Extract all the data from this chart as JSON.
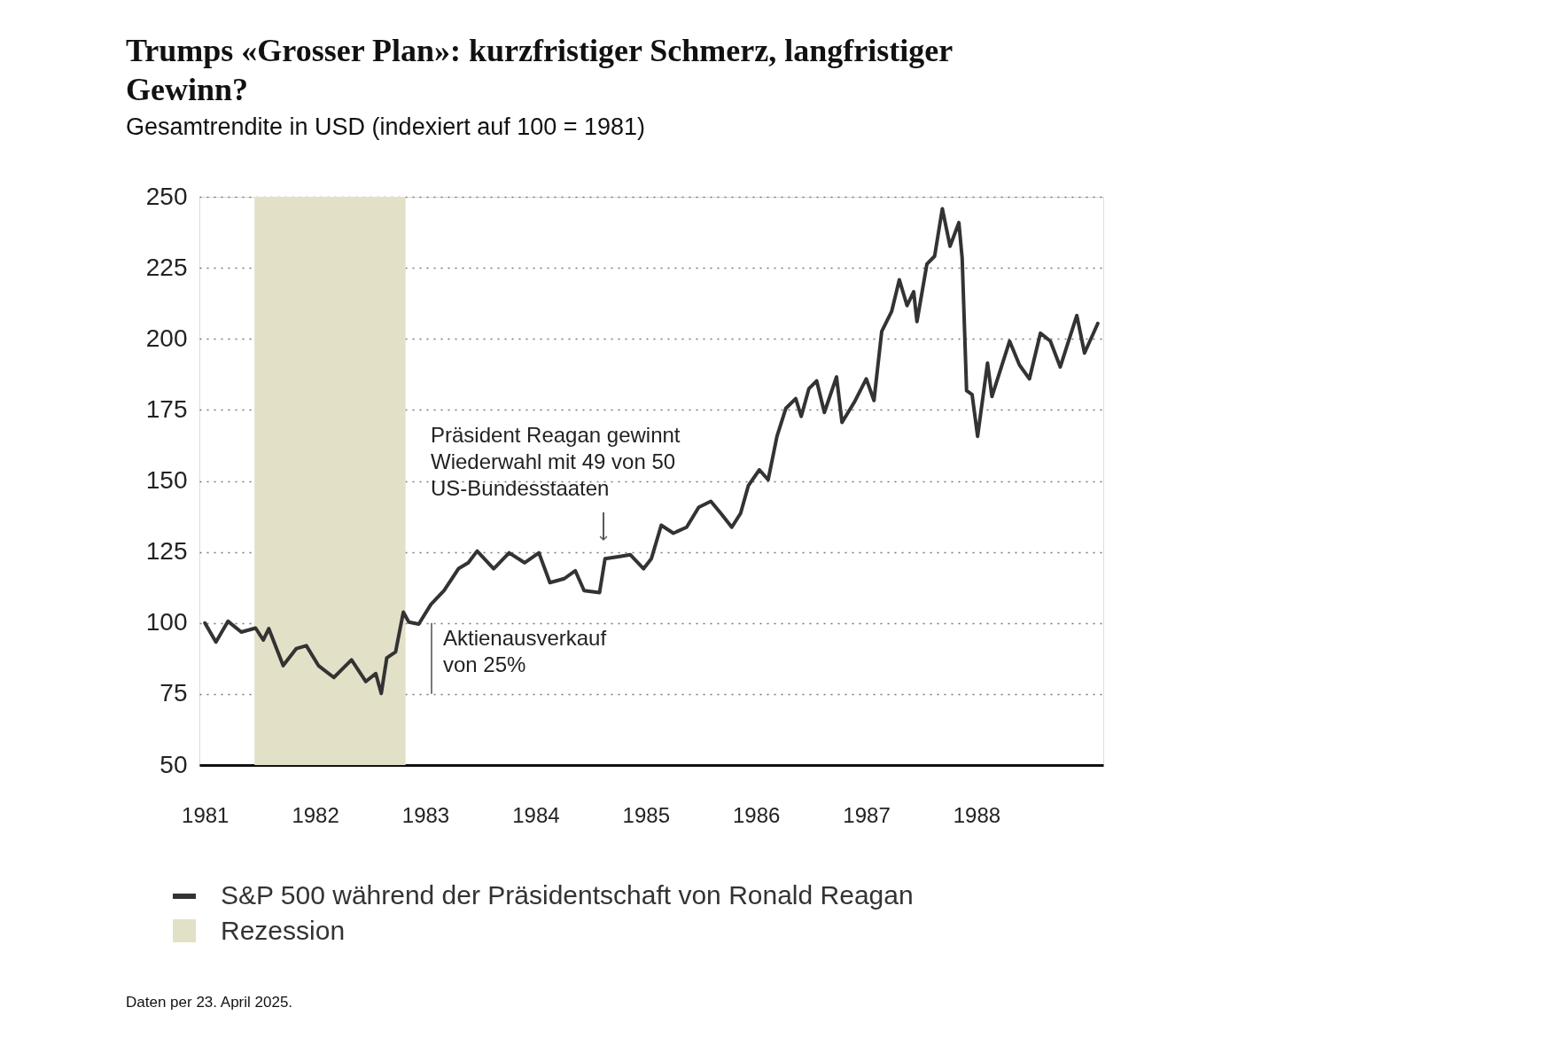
{
  "chart_data": {
    "type": "line",
    "title": "Trumps «Grosser Plan»: kurzfristiger Schmerz, langfristiger Gewinn?",
    "subtitle": "Gesamtrendite in USD (indexiert auf 100 = 1981)",
    "x": [
      1981.0,
      1981.1,
      1981.21,
      1981.33,
      1981.46,
      1981.53,
      1981.58,
      1981.71,
      1981.83,
      1981.92,
      1982.03,
      1982.17,
      1982.33,
      1982.46,
      1982.55,
      1982.6,
      1982.65,
      1982.73,
      1982.8,
      1982.85,
      1982.94,
      1983.05,
      1983.17,
      1983.3,
      1983.39,
      1983.47,
      1983.62,
      1983.76,
      1983.9,
      1984.03,
      1984.13,
      1984.26,
      1984.36,
      1984.44,
      1984.58,
      1984.63,
      1984.75,
      1984.86,
      1984.98,
      1985.05,
      1985.14,
      1985.25,
      1985.37,
      1985.48,
      1985.59,
      1985.68,
      1985.78,
      1985.86,
      1985.93,
      1986.03,
      1986.11,
      1986.19,
      1986.27,
      1986.36,
      1986.41,
      1986.48,
      1986.55,
      1986.62,
      1986.73,
      1986.78,
      1986.89,
      1987.0,
      1987.07,
      1987.14,
      1987.23,
      1987.3,
      1987.37,
      1987.43,
      1987.46,
      1987.55,
      1987.62,
      1987.69,
      1987.76,
      1987.84,
      1987.87,
      1987.91,
      1987.96,
      1988.01,
      1988.1,
      1988.14,
      1988.3,
      1988.39,
      1988.48,
      1988.58,
      1988.67,
      1988.76,
      1988.91,
      1988.98,
      1989.1
    ],
    "series": [
      {
        "name": "S&P 500 während der Präsidentschaft von Ronald Reagan",
        "color": "#333333",
        "values": [
          100,
          93.3,
          100.6,
          96.8,
          98.2,
          94,
          98,
          85,
          91,
          92,
          85,
          80.8,
          87,
          79.4,
          82.2,
          75.2,
          87.7,
          89.8,
          103.8,
          100.3,
          99.6,
          106.5,
          111.4,
          119.1,
          121.2,
          125.3,
          119.1,
          124.7,
          121.2,
          124.7,
          114.2,
          115.6,
          118.4,
          111.4,
          110.7,
          122.6,
          123.3,
          124,
          119.1,
          122.6,
          134.4,
          131.6,
          133.7,
          140.7,
          142.8,
          138.6,
          133.7,
          138.6,
          148.3,
          153.9,
          150.4,
          165.7,
          175.5,
          179,
          172.7,
          182.5,
          185.2,
          174.1,
          186.6,
          170.6,
          177.6,
          185.9,
          178.3,
          202.6,
          209.6,
          220.8,
          211.7,
          216.6,
          206.1,
          226.3,
          229.1,
          245.8,
          232.6,
          240.9,
          228.4,
          181.8,
          180.4,
          165.7,
          191.5,
          179.7,
          199.2,
          190.8,
          185.9,
          202,
          199.2,
          190.1,
          208.2,
          195,
          205.4
        ]
      }
    ],
    "xlim": [
      1980.95,
      1989.15
    ],
    "xticks": [
      1981,
      1982,
      1983,
      1984,
      1985,
      1986,
      1987,
      1988
    ],
    "ylim": [
      50,
      250
    ],
    "yticks": [
      50,
      75,
      100,
      125,
      150,
      175,
      200,
      225,
      250
    ],
    "grid": "y",
    "legend": "bottom",
    "line_style": "solid",
    "bands": [
      {
        "axis": "x",
        "from": 1981.45,
        "to": 1982.82,
        "label": "Rezession",
        "color": "#e3e0c8"
      }
    ],
    "annotations": [
      "Präsident Reagan gewinnt\nWiederwahl mit 49 von 50\nUS-Bundesstaaten",
      "Aktienausverkauf\nvon 25%",
      "Daten per 23. April 2025."
    ]
  }
}
